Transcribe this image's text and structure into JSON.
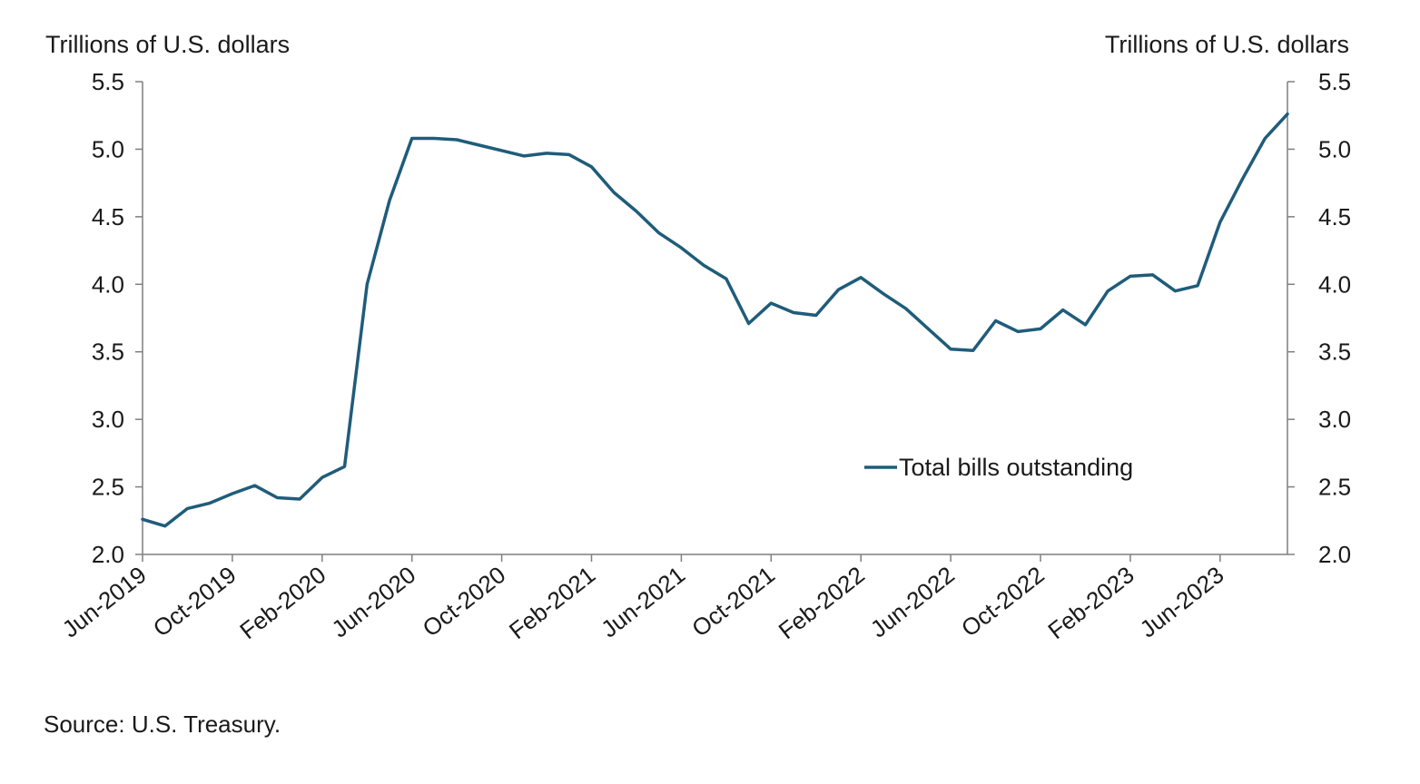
{
  "chart_data": {
    "type": "line",
    "ylabel_left": "Trillions of U.S. dollars",
    "ylabel_right": "Trillions  of U.S. dollars",
    "ylim": [
      2.0,
      5.5
    ],
    "yticks": [
      "2.0",
      "2.5",
      "3.0",
      "3.5",
      "4.0",
      "4.5",
      "5.0",
      "5.5"
    ],
    "x_tick_labels": [
      "Jun-2019",
      "Oct-2019",
      "Feb-2020",
      "Jun-2020",
      "Oct-2020",
      "Feb-2021",
      "Jun-2021",
      "Oct-2021",
      "Feb-2022",
      "Jun-2022",
      "Oct-2022",
      "Feb-2023",
      "Jun-2023"
    ],
    "x": [
      "2019-06",
      "2019-07",
      "2019-08",
      "2019-09",
      "2019-10",
      "2019-11",
      "2019-12",
      "2020-01",
      "2020-02",
      "2020-03",
      "2020-04",
      "2020-05",
      "2020-06",
      "2020-07",
      "2020-08",
      "2020-09",
      "2020-10",
      "2020-11",
      "2020-12",
      "2021-01",
      "2021-02",
      "2021-03",
      "2021-04",
      "2021-05",
      "2021-06",
      "2021-07",
      "2021-08",
      "2021-09",
      "2021-10",
      "2021-11",
      "2021-12",
      "2022-01",
      "2022-02",
      "2022-03",
      "2022-04",
      "2022-05",
      "2022-06",
      "2022-07",
      "2022-08",
      "2022-09",
      "2022-10",
      "2022-11",
      "2022-12",
      "2023-01",
      "2023-02",
      "2023-03",
      "2023-04",
      "2023-05",
      "2023-06",
      "2023-07",
      "2023-08",
      "2023-09"
    ],
    "series": [
      {
        "name": "Total bills outstanding",
        "color": "#1f5c7a",
        "values": [
          2.26,
          2.21,
          2.34,
          2.38,
          2.45,
          2.51,
          2.42,
          2.41,
          2.57,
          2.65,
          4.0,
          4.62,
          5.08,
          5.08,
          5.07,
          5.03,
          4.99,
          4.95,
          4.97,
          4.96,
          4.87,
          4.68,
          4.54,
          4.38,
          4.27,
          4.14,
          4.04,
          3.71,
          3.86,
          3.79,
          3.77,
          3.96,
          4.05,
          3.93,
          3.82,
          3.67,
          3.52,
          3.51,
          3.73,
          3.65,
          3.67,
          3.81,
          3.7,
          3.95,
          4.06,
          4.07,
          3.95,
          3.99,
          4.46,
          4.78,
          5.08,
          5.26
        ]
      }
    ],
    "legend_position": "center-right",
    "grid": false
  },
  "source": "Source: U.S. Treasury."
}
